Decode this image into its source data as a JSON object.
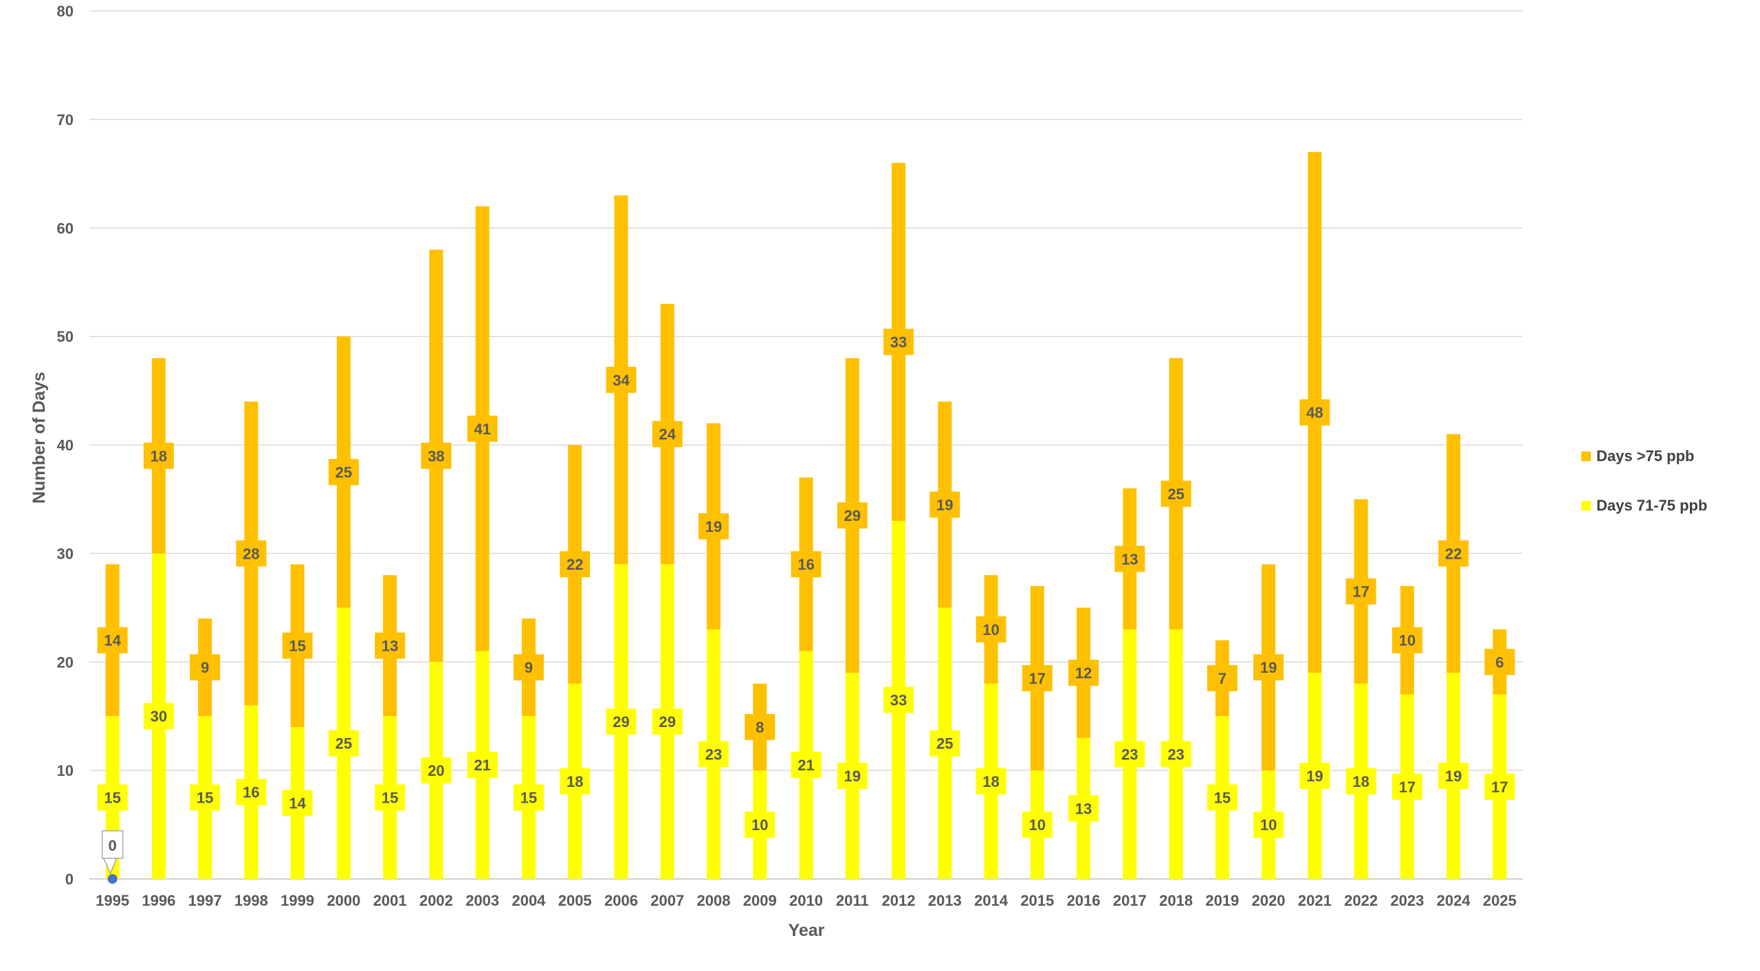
{
  "chart_data": {
    "type": "bar",
    "stacked": true,
    "xlabel": "Year",
    "ylabel": "Number of Days",
    "ylim": [
      0,
      80
    ],
    "yticks": [
      0,
      10,
      20,
      30,
      40,
      50,
      60,
      70,
      80
    ],
    "grid": true,
    "legend_position": "right",
    "categories": [
      "1995",
      "1996",
      "1997",
      "1998",
      "1999",
      "2000",
      "2001",
      "2002",
      "2003",
      "2004",
      "2005",
      "2006",
      "2007",
      "2008",
      "2009",
      "2010",
      "2011",
      "2012",
      "2013",
      "2014",
      "2015",
      "2016",
      "2017",
      "2018",
      "2019",
      "2020",
      "2021",
      "2022",
      "2023",
      "2024",
      "2025"
    ],
    "series": [
      {
        "name": "Days 71-75 ppb",
        "color": "#FFFF00",
        "values": [
          15,
          30,
          15,
          16,
          14,
          25,
          15,
          20,
          21,
          15,
          18,
          29,
          29,
          23,
          10,
          21,
          19,
          33,
          25,
          18,
          10,
          13,
          23,
          23,
          15,
          10,
          19,
          18,
          17,
          19,
          17
        ]
      },
      {
        "name": "Days >75 ppb",
        "color": "#FFC000",
        "values": [
          14,
          18,
          9,
          28,
          15,
          25,
          13,
          38,
          41,
          9,
          22,
          34,
          24,
          19,
          8,
          16,
          29,
          33,
          19,
          10,
          17,
          12,
          13,
          25,
          7,
          19,
          48,
          17,
          10,
          22,
          6
        ]
      }
    ],
    "annotations": [
      {
        "category": "1995",
        "text": "0",
        "marker_color": "#4472C4"
      }
    ],
    "legend_order": [
      "Days >75 ppb",
      "Days 71-75 ppb"
    ]
  }
}
